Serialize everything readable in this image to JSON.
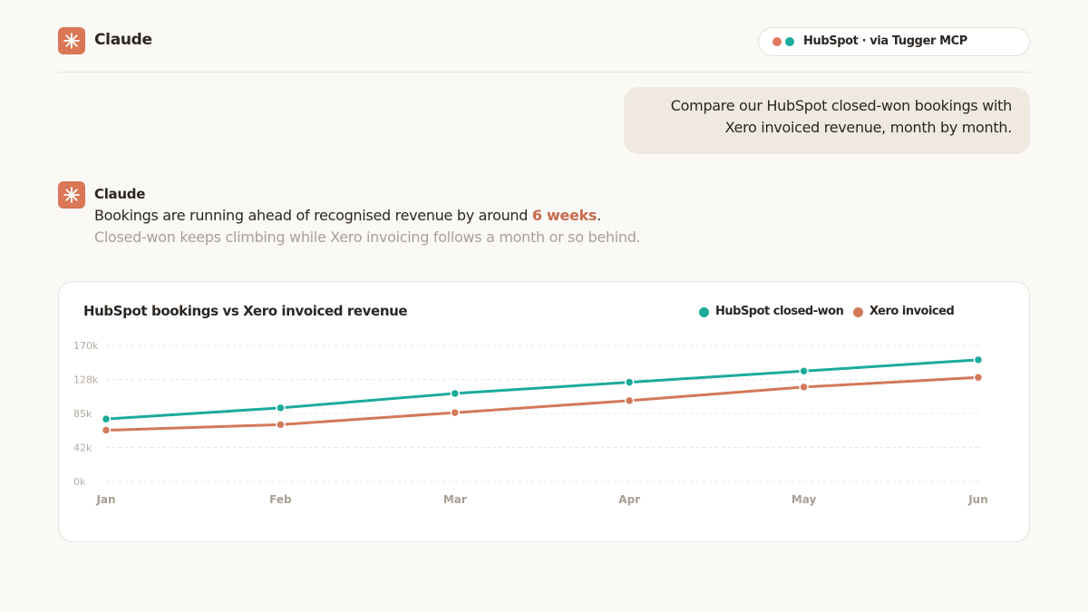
{
  "app": {
    "title": "Claude",
    "logo_icon": "asterisk-icon"
  },
  "connector": {
    "label": "HubSpot · via Tugger MCP",
    "dot_colors": [
      "#e07a5f",
      "#1aab9b"
    ]
  },
  "user_message": {
    "text": "Compare our HubSpot closed-won bookings with Xero invoiced revenue, month by month."
  },
  "assistant": {
    "name": "Claude",
    "line1_before": "Bookings are running ahead of recognised revenue by around ",
    "line1_highlight": "6 weeks",
    "line1_after": ".",
    "line2": "Closed-won keeps climbing while Xero invoicing follows a month or so behind."
  },
  "colors": {
    "accent": "#d97757",
    "hubspot": "#1aab9b",
    "xero": "#d4785a"
  },
  "chart_data": {
    "type": "line",
    "title": "HubSpot bookings vs Xero invoiced revenue",
    "categories": [
      "Jan",
      "Feb",
      "Mar",
      "Apr",
      "May",
      "Jun"
    ],
    "y_ticks": [
      "0k",
      "42k",
      "85k",
      "128k",
      "170k"
    ],
    "ylim": [
      0,
      170000
    ],
    "grid": true,
    "legend_position": "top-right",
    "series": [
      {
        "name": "HubSpot closed-won",
        "color": "#1aab9b",
        "values": [
          78000,
          92000,
          110000,
          124000,
          138000,
          152000
        ]
      },
      {
        "name": "Xero invoiced",
        "color": "#d4785a",
        "values": [
          64000,
          71000,
          86000,
          101000,
          118000,
          130000
        ]
      }
    ]
  }
}
